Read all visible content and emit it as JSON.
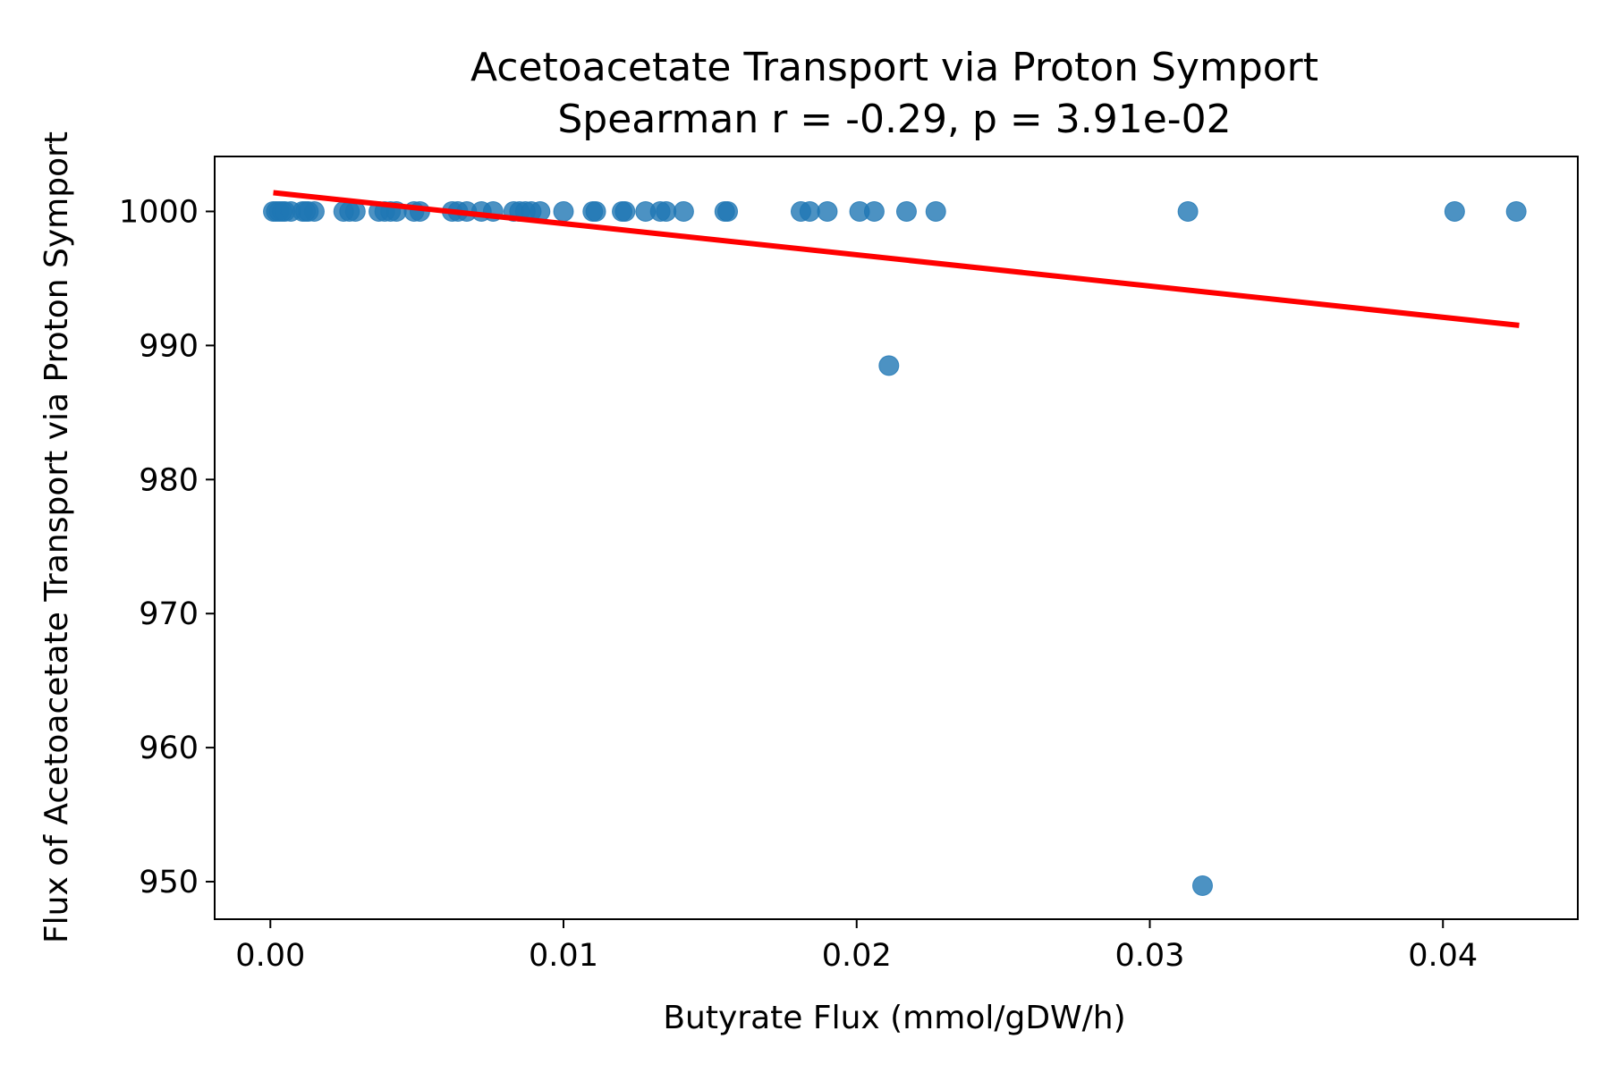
{
  "chart_data": {
    "type": "scatter",
    "title": "Acetoacetate Transport via Proton Symport",
    "subtitle": "Spearman r = -0.29, p = 3.91e-02",
    "xlabel": "Butyrate Flux (mmol/gDW/h)",
    "ylabel": "Flux of Acetoacetate Transport via Proton Symport",
    "xlim": [
      -0.0019,
      0.0446
    ],
    "ylim": [
      947.2,
      1004.1
    ],
    "x_ticks": [
      "0.00",
      "0.01",
      "0.02",
      "0.03",
      "0.04"
    ],
    "x_tick_values": [
      0.0,
      0.01,
      0.02,
      0.03,
      0.04
    ],
    "y_ticks": [
      "950",
      "960",
      "970",
      "980",
      "990",
      "1000"
    ],
    "y_tick_values": [
      950,
      960,
      970,
      980,
      990,
      1000
    ],
    "grid": false,
    "colors": {
      "points": "#1f77b4",
      "trend": "#ff0000"
    },
    "series": [
      {
        "x": [
          0.0001,
          0.0002,
          0.0003,
          0.0004,
          0.0005,
          0.0007,
          0.0011,
          0.0012,
          0.0013,
          0.0015,
          0.0025,
          0.0027,
          0.0029,
          0.0037,
          0.0039,
          0.0041,
          0.0043,
          0.0049,
          0.0051,
          0.0062,
          0.0064,
          0.0067,
          0.0072,
          0.0076,
          0.0083,
          0.0085,
          0.0087,
          0.0089,
          0.0092,
          0.01,
          0.011,
          0.0111,
          0.012,
          0.0121,
          0.0128,
          0.0133,
          0.0135,
          0.0141,
          0.0155,
          0.0156,
          0.0181,
          0.0184,
          0.019,
          0.0201,
          0.0206,
          0.0211,
          0.0217,
          0.0227,
          0.0313,
          0.0318,
          0.0404,
          0.0425
        ],
        "y": [
          1000,
          1000,
          1000,
          1000,
          1000,
          1000,
          1000,
          1000,
          1000,
          1000,
          1000,
          1000,
          1000,
          1000,
          1000,
          1000,
          1000,
          1000,
          1000,
          1000,
          1000,
          1000,
          1000,
          1000,
          1000,
          1000,
          1000,
          1000,
          1000,
          1000,
          1000,
          1000,
          1000,
          1000,
          1000,
          1000,
          1000,
          1000,
          1000,
          1000,
          1000,
          1000,
          1000,
          1000,
          1000,
          988.5,
          1000,
          1000,
          1000,
          949.7,
          1000,
          1000
        ]
      }
    ],
    "trendline": {
      "x": [
        0.0001,
        0.0426
      ],
      "y": [
        1001.4,
        991.5
      ]
    }
  }
}
